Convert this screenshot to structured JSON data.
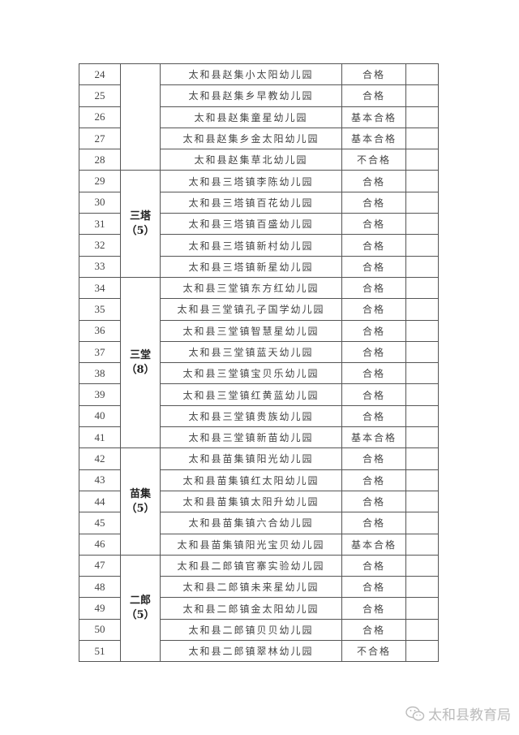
{
  "groups": [
    {
      "town": "",
      "count": "",
      "rows": [
        {
          "no": "24",
          "name": "太和县赵集小太阳幼儿园",
          "result": "合格"
        },
        {
          "no": "25",
          "name": "太和县赵集乡早教幼儿园",
          "result": "合格"
        },
        {
          "no": "26",
          "name": "太和县赵集童星幼儿园",
          "result": "基本合格"
        },
        {
          "no": "27",
          "name": "太和县赵集乡金太阳幼儿园",
          "result": "基本合格"
        },
        {
          "no": "28",
          "name": "太和县赵集草北幼儿园",
          "result": "不合格"
        }
      ]
    },
    {
      "town": "三塔",
      "count": "（5）",
      "rows": [
        {
          "no": "29",
          "name": "太和县三塔镇李陈幼儿园",
          "result": "合格"
        },
        {
          "no": "30",
          "name": "太和县三塔镇百花幼儿园",
          "result": "合格"
        },
        {
          "no": "31",
          "name": "太和县三塔镇百盛幼儿园",
          "result": "合格"
        },
        {
          "no": "32",
          "name": "太和县三塔镇新村幼儿园",
          "result": "合格"
        },
        {
          "no": "33",
          "name": "太和县三塔镇新星幼儿园",
          "result": "合格"
        }
      ]
    },
    {
      "town": "三堂",
      "count": "（8）",
      "rows": [
        {
          "no": "34",
          "name": "太和县三堂镇东方红幼儿园",
          "result": "合格"
        },
        {
          "no": "35",
          "name": "太和县三堂镇孔子国学幼儿园",
          "result": "合格"
        },
        {
          "no": "36",
          "name": "太和县三堂镇智慧星幼儿园",
          "result": "合格"
        },
        {
          "no": "37",
          "name": "太和县三堂镇蓝天幼儿园",
          "result": "合格"
        },
        {
          "no": "38",
          "name": "太和县三堂镇宝贝乐幼儿园",
          "result": "合格"
        },
        {
          "no": "39",
          "name": "太和县三堂镇红黄蓝幼儿园",
          "result": "合格"
        },
        {
          "no": "40",
          "name": "太和县三堂镇贵族幼儿园",
          "result": "合格"
        },
        {
          "no": "41",
          "name": "太和县三堂镇新苗幼儿园",
          "result": "基本合格"
        }
      ]
    },
    {
      "town": "苗集",
      "count": "（5）",
      "rows": [
        {
          "no": "42",
          "name": "太和县苗集镇阳光幼儿园",
          "result": "合格"
        },
        {
          "no": "43",
          "name": "太和县苗集镇红太阳幼儿园",
          "result": "合格"
        },
        {
          "no": "44",
          "name": "太和县苗集镇太阳升幼儿园",
          "result": "合格"
        },
        {
          "no": "45",
          "name": "太和县苗集镇六合幼儿园",
          "result": "合格"
        },
        {
          "no": "46",
          "name": "太和县苗集镇阳光宝贝幼儿园",
          "result": "基本合格"
        }
      ]
    },
    {
      "town": "二郎",
      "count": "（5）",
      "rows": [
        {
          "no": "47",
          "name": "太和县二郎镇官寨实验幼儿园",
          "result": "合格"
        },
        {
          "no": "48",
          "name": "太和县二郎镇未来星幼儿园",
          "result": "合格"
        },
        {
          "no": "49",
          "name": "太和县二郎镇金太阳幼儿园",
          "result": "合格"
        },
        {
          "no": "50",
          "name": "太和县二郎镇贝贝幼儿园",
          "result": "合格"
        },
        {
          "no": "51",
          "name": "太和县二郎镇翠林幼儿园",
          "result": "不合格"
        }
      ]
    }
  ],
  "watermark": {
    "text": "太和县教育局",
    "icon": "wechat-icon"
  }
}
